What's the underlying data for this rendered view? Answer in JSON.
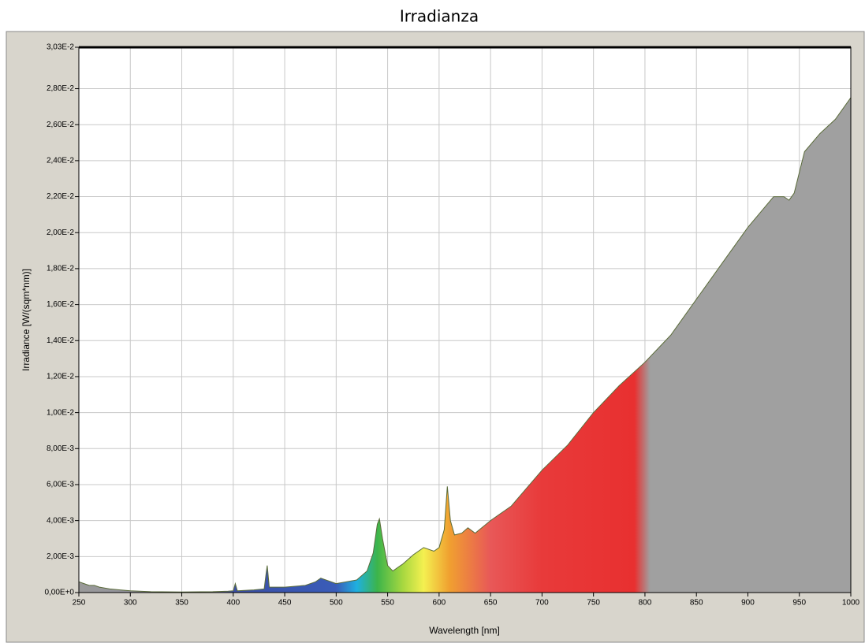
{
  "chart_data": {
    "type": "area",
    "title": "Irradianza",
    "x_label": "Wavelength [nm]",
    "y_label": "Irradiance [W/(sqm*nm)]",
    "x": [
      250,
      255,
      260,
      265,
      270,
      280,
      290,
      300,
      320,
      350,
      380,
      395,
      400,
      402,
      404,
      420,
      430,
      432,
      433,
      435,
      450,
      470,
      480,
      485,
      490,
      500,
      520,
      530,
      536,
      540,
      542,
      545,
      550,
      555,
      565,
      575,
      585,
      595,
      600,
      605,
      608,
      611,
      615,
      622,
      628,
      635,
      650,
      670,
      700,
      725,
      750,
      775,
      800,
      825,
      850,
      875,
      900,
      925,
      935,
      940,
      945,
      955,
      970,
      985,
      1000
    ],
    "values": [
      0.0006,
      0.0005,
      0.0004,
      0.0004,
      0.0003,
      0.0002,
      0.00015,
      0.0001,
      5e-05,
      3e-05,
      5e-05,
      8e-05,
      0.0001,
      0.0005,
      0.0001,
      0.00015,
      0.0002,
      0.0011,
      0.0015,
      0.0003,
      0.0003,
      0.0004,
      0.0006,
      0.0008,
      0.0007,
      0.0005,
      0.0007,
      0.0012,
      0.0022,
      0.0038,
      0.0041,
      0.003,
      0.0015,
      0.0012,
      0.0016,
      0.0021,
      0.0025,
      0.0023,
      0.0025,
      0.0035,
      0.0059,
      0.004,
      0.0032,
      0.0033,
      0.0036,
      0.0033,
      0.004,
      0.0048,
      0.0068,
      0.0082,
      0.01,
      0.0115,
      0.0128,
      0.0143,
      0.0163,
      0.0183,
      0.0203,
      0.022,
      0.022,
      0.0218,
      0.0222,
      0.0245,
      0.0255,
      0.0263,
      0.0275
    ],
    "line_color": "#5a6b3a",
    "colors": [
      {
        "x": 250,
        "color": "#9a9a9a"
      },
      {
        "x": 380,
        "color": "#8a8aa0"
      },
      {
        "x": 400,
        "color": "#3b4fa5"
      },
      {
        "x": 500,
        "color": "#3a5cb8"
      },
      {
        "x": 520,
        "color": "#1fb0e0"
      },
      {
        "x": 540,
        "color": "#3cb44a"
      },
      {
        "x": 565,
        "color": "#a8d840"
      },
      {
        "x": 585,
        "color": "#f4f050"
      },
      {
        "x": 610,
        "color": "#f0a030"
      },
      {
        "x": 650,
        "color": "#e85858"
      },
      {
        "x": 700,
        "color": "#e83a3a"
      },
      {
        "x": 790,
        "color": "#e83030"
      },
      {
        "x": 805,
        "color": "#a0a0a0"
      },
      {
        "x": 1000,
        "color": "#a0a0a0"
      }
    ],
    "xlim": [
      250,
      1000
    ],
    "ylim": [
      0,
      0.0303
    ],
    "xticks": [
      250,
      300,
      350,
      400,
      450,
      500,
      550,
      600,
      650,
      700,
      750,
      800,
      850,
      900,
      950,
      1000
    ],
    "yticks": [
      {
        "value": 0,
        "label": "0,00E+0"
      },
      {
        "value": 0.002,
        "label": "2,00E-3"
      },
      {
        "value": 0.004,
        "label": "4,00E-3"
      },
      {
        "value": 0.006,
        "label": "6,00E-3"
      },
      {
        "value": 0.008,
        "label": "8,00E-3"
      },
      {
        "value": 0.01,
        "label": "1,00E-2"
      },
      {
        "value": 0.012,
        "label": "1,20E-2"
      },
      {
        "value": 0.014,
        "label": "1,40E-2"
      },
      {
        "value": 0.016,
        "label": "1,60E-2"
      },
      {
        "value": 0.018,
        "label": "1,80E-2"
      },
      {
        "value": 0.02,
        "label": "2,00E-2"
      },
      {
        "value": 0.022,
        "label": "2,20E-2"
      },
      {
        "value": 0.024,
        "label": "2,40E-2"
      },
      {
        "value": 0.026,
        "label": "2,60E-2"
      },
      {
        "value": 0.028,
        "label": "2,80E-2"
      },
      {
        "value": 0.0303,
        "label": "3,03E-2"
      }
    ],
    "grid": true
  }
}
